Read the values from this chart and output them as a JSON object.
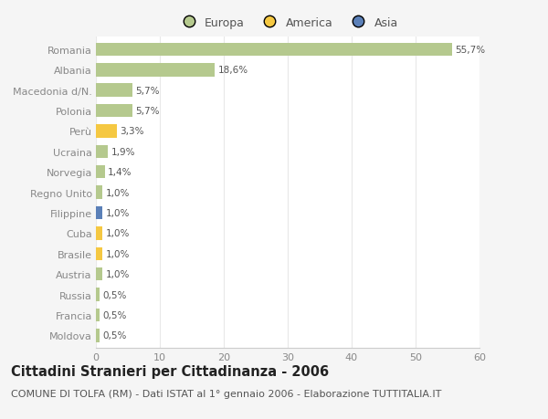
{
  "countries": [
    "Romania",
    "Albania",
    "Macedonia d/N.",
    "Polonia",
    "Perù",
    "Ucraina",
    "Norvegia",
    "Regno Unito",
    "Filippine",
    "Cuba",
    "Brasile",
    "Austria",
    "Russia",
    "Francia",
    "Moldova"
  ],
  "values": [
    55.7,
    18.6,
    5.7,
    5.7,
    3.3,
    1.9,
    1.4,
    1.0,
    1.0,
    1.0,
    1.0,
    1.0,
    0.5,
    0.5,
    0.5
  ],
  "labels": [
    "55,7%",
    "18,6%",
    "5,7%",
    "5,7%",
    "3,3%",
    "1,9%",
    "1,4%",
    "1,0%",
    "1,0%",
    "1,0%",
    "1,0%",
    "1,0%",
    "0,5%",
    "0,5%",
    "0,5%"
  ],
  "continents": [
    "Europa",
    "Europa",
    "Europa",
    "Europa",
    "America",
    "Europa",
    "Europa",
    "Europa",
    "Asia",
    "America",
    "America",
    "Europa",
    "Europa",
    "Europa",
    "Europa"
  ],
  "colors": {
    "Europa": "#b5c98e",
    "America": "#f5c842",
    "Asia": "#5b80b8"
  },
  "xlim": [
    0,
    60
  ],
  "xticks": [
    0,
    10,
    20,
    30,
    40,
    50,
    60
  ],
  "background_color": "#f5f5f5",
  "plot_bg_color": "#ffffff",
  "grid_color": "#e8e8e8",
  "title": "Cittadini Stranieri per Cittadinanza - 2006",
  "subtitle": "COMUNE DI TOLFA (RM) - Dati ISTAT al 1° gennaio 2006 - Elaborazione TUTTITALIA.IT",
  "title_fontsize": 10.5,
  "subtitle_fontsize": 8,
  "bar_height": 0.65,
  "figsize": [
    6.0,
    4.6
  ],
  "dpi": 100
}
